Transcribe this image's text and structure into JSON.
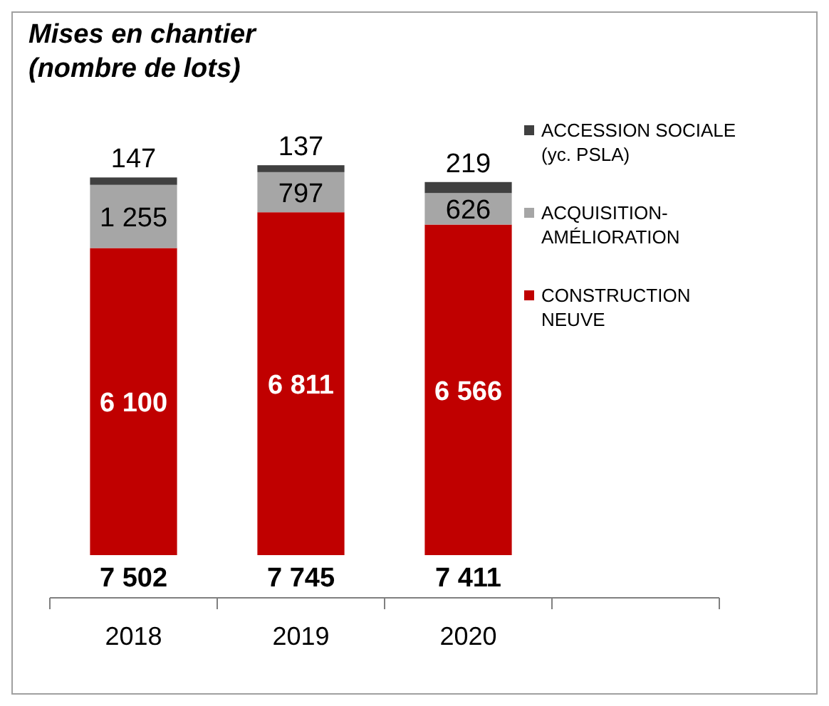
{
  "chart_data": {
    "type": "bar",
    "stacked": true,
    "title": "Mises en chantier",
    "subtitle": "(nombre de lots)",
    "categories": [
      "2018",
      "2019",
      "2020",
      null
    ],
    "series": [
      {
        "name": "CONSTRUCTION NEUVE",
        "color": "#c00000",
        "values": [
          6100,
          6811,
          6566,
          null
        ],
        "value_labels": [
          "6 100",
          "6 811",
          "6 566",
          null
        ]
      },
      {
        "name": "ACQUISITION-AMÉLIORATION",
        "color": "#a6a6a6",
        "values": [
          1255,
          797,
          626,
          null
        ],
        "value_labels": [
          "1 255",
          "797",
          "626",
          null
        ]
      },
      {
        "name": "ACCESSION SOCIALE (yc. PSLA)",
        "color": "#404040",
        "values": [
          147,
          137,
          219,
          null
        ],
        "value_labels": [
          "147",
          "137",
          "219",
          null
        ]
      }
    ],
    "totals": [
      "7 502",
      "7 745",
      "7 411",
      null
    ],
    "legend": "right"
  }
}
